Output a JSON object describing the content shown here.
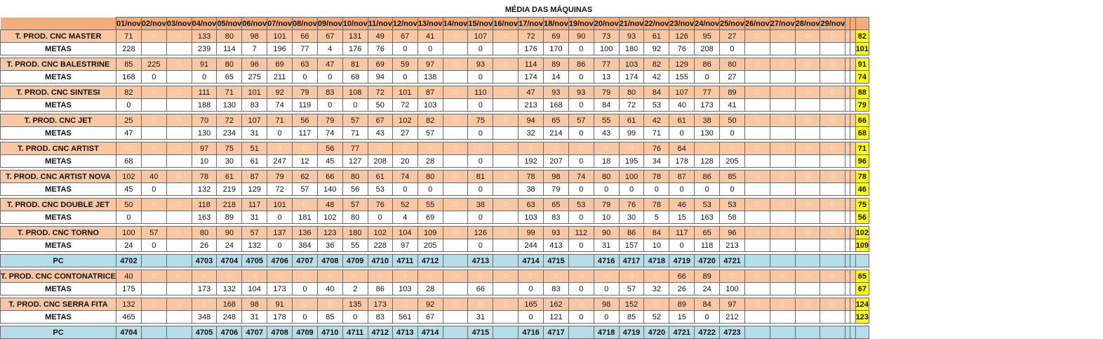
{
  "title": "MÉDIA DAS MÁQUINAS",
  "dates": [
    "01/nov",
    "02/nov",
    "03/nov",
    "04/nov",
    "05/nov",
    "06/nov",
    "07/nov",
    "08/nov",
    "09/nov",
    "10/nov",
    "11/nov",
    "12/nov",
    "13/nov",
    "14/nov",
    "15/nov",
    "16/nov",
    "17/nov",
    "18/nov",
    "19/nov",
    "20/nov",
    "21/nov",
    "22/nov",
    "23/nov",
    "24/nov",
    "25/nov",
    "26/nov",
    "27/nov",
    "28/nov",
    "29/nov",
    "",
    ""
  ],
  "rows": [
    {
      "type": "prod",
      "label": "T. PROD. CNC MASTER",
      "values": [
        "71",
        "0",
        "0",
        "133",
        "80",
        "98",
        "101",
        "66",
        "67",
        "131",
        "49",
        "67",
        "41",
        "0",
        "107",
        "0",
        "72",
        "69",
        "90",
        "73",
        "93",
        "61",
        "126",
        "95",
        "27",
        "0",
        "0",
        "0",
        "0",
        "0",
        "0"
      ],
      "avg": "82"
    },
    {
      "type": "meta",
      "label": "METAS",
      "values": [
        "228",
        "",
        "",
        "239",
        "114",
        "7",
        "196",
        "77",
        "4",
        "176",
        "76",
        "0",
        "0",
        "",
        "0",
        "",
        "176",
        "170",
        "0",
        "100",
        "180",
        "92",
        "76",
        "208",
        "0",
        "",
        "",
        "",
        "",
        "",
        ""
      ],
      "avg": "101"
    },
    {
      "type": "sep"
    },
    {
      "type": "prod",
      "label": "T. PROD. CNC BALESTRINE",
      "values": [
        "85",
        "225",
        "0",
        "91",
        "80",
        "96",
        "69",
        "63",
        "47",
        "81",
        "69",
        "59",
        "97",
        "0",
        "93",
        "0",
        "114",
        "89",
        "86",
        "77",
        "103",
        "82",
        "129",
        "86",
        "80",
        "0",
        "0",
        "0",
        "0",
        "0",
        "0"
      ],
      "avg": "91"
    },
    {
      "type": "meta",
      "label": "METAS",
      "values": [
        "168",
        "0",
        "",
        "0",
        "65",
        "275",
        "211",
        "0",
        "0",
        "68",
        "94",
        "0",
        "138",
        "",
        "0",
        "",
        "174",
        "14",
        "0",
        "13",
        "174",
        "42",
        "155",
        "0",
        "27",
        "",
        "",
        "",
        "",
        "",
        ""
      ],
      "avg": "74"
    },
    {
      "type": "sep"
    },
    {
      "type": "prod",
      "label": "T. PROD. CNC SINTESI",
      "values": [
        "82",
        "0",
        "0",
        "111",
        "71",
        "101",
        "92",
        "79",
        "83",
        "108",
        "72",
        "101",
        "87",
        "0",
        "110",
        "0",
        "47",
        "93",
        "93",
        "79",
        "80",
        "84",
        "107",
        "77",
        "89",
        "0",
        "0",
        "0",
        "0",
        "0",
        "0"
      ],
      "avg": "88"
    },
    {
      "type": "meta",
      "label": "METAS",
      "values": [
        "0",
        "",
        "",
        "188",
        "130",
        "83",
        "74",
        "119",
        "0",
        "0",
        "50",
        "72",
        "103",
        "",
        "0",
        "",
        "213",
        "168",
        "0",
        "84",
        "72",
        "53",
        "40",
        "173",
        "41",
        "",
        "",
        "",
        "",
        "",
        ""
      ],
      "avg": "79"
    },
    {
      "type": "sep"
    },
    {
      "type": "prod",
      "label": "T. PROD. CNC JET",
      "values": [
        "25",
        "0",
        "0",
        "70",
        "72",
        "107",
        "71",
        "56",
        "79",
        "57",
        "67",
        "102",
        "82",
        "0",
        "75",
        "0",
        "94",
        "65",
        "57",
        "55",
        "61",
        "42",
        "61",
        "38",
        "50",
        "0",
        "0",
        "0",
        "0",
        "0",
        "0"
      ],
      "avg": "66"
    },
    {
      "type": "meta",
      "label": "METAS",
      "values": [
        "47",
        "",
        "",
        "130",
        "234",
        "31",
        "0",
        "117",
        "74",
        "71",
        "43",
        "27",
        "57",
        "",
        "0",
        "",
        "32",
        "214",
        "0",
        "43",
        "99",
        "71",
        "0",
        "130",
        "0",
        "",
        "",
        "",
        "",
        "",
        ""
      ],
      "avg": "68"
    },
    {
      "type": "sep"
    },
    {
      "type": "prod",
      "label": "T. PROD. CNC ARTIST",
      "values": [
        "0",
        "0",
        "0",
        "97",
        "75",
        "51",
        "0",
        "0",
        "56",
        "77",
        "0",
        "0",
        "0",
        "0",
        "0",
        "0",
        "0",
        "0",
        "0",
        "0",
        "0",
        "76",
        "64",
        "0",
        "0",
        "0",
        "0",
        "0",
        "0",
        "0",
        "0"
      ],
      "avg": "71"
    },
    {
      "type": "meta",
      "label": "METAS",
      "values": [
        "68",
        "",
        "",
        "10",
        "30",
        "61",
        "247",
        "12",
        "45",
        "127",
        "208",
        "20",
        "28",
        "",
        "0",
        "",
        "192",
        "207",
        "0",
        "18",
        "195",
        "34",
        "178",
        "128",
        "205",
        "",
        "",
        "",
        "",
        "",
        ""
      ],
      "avg": "96"
    },
    {
      "type": "sep"
    },
    {
      "type": "prod",
      "label": "T. PROD. CNC ARTIST NOVA",
      "values": [
        "102",
        "40",
        "0",
        "78",
        "61",
        "87",
        "79",
        "62",
        "66",
        "80",
        "61",
        "74",
        "80",
        "0",
        "81",
        "0",
        "78",
        "98",
        "74",
        "80",
        "100",
        "78",
        "87",
        "86",
        "85",
        "0",
        "0",
        "0",
        "0",
        "0",
        "0"
      ],
      "avg": "78"
    },
    {
      "type": "meta",
      "label": "METAS",
      "values": [
        "45",
        "0",
        "",
        "132",
        "219",
        "129",
        "72",
        "57",
        "140",
        "56",
        "53",
        "0",
        "0",
        "",
        "0",
        "",
        "38",
        "79",
        "0",
        "0",
        "0",
        "0",
        "0",
        "0",
        "0",
        "",
        "",
        "",
        "",
        "",
        ""
      ],
      "avg": "46"
    },
    {
      "type": "sep"
    },
    {
      "type": "prod",
      "label": "T. PROD. CNC DOUBLE JET",
      "values": [
        "50",
        "0",
        "0",
        "118",
        "218",
        "117",
        "101",
        "0",
        "48",
        "57",
        "76",
        "52",
        "55",
        "0",
        "38",
        "0",
        "63",
        "65",
        "53",
        "79",
        "76",
        "78",
        "46",
        "53",
        "53",
        "0",
        "0",
        "0",
        "0",
        "0",
        "0"
      ],
      "avg": "75"
    },
    {
      "type": "meta",
      "label": "METAS",
      "values": [
        "0",
        "",
        "",
        "163",
        "89",
        "31",
        "0",
        "181",
        "102",
        "80",
        "0",
        "4",
        "69",
        "",
        "0",
        "",
        "103",
        "83",
        "0",
        "10",
        "30",
        "5",
        "15",
        "163",
        "58",
        "",
        "",
        "",
        "",
        "",
        ""
      ],
      "avg": "56"
    },
    {
      "type": "sep"
    },
    {
      "type": "prod",
      "label": "T. PROD. CNC TORNO",
      "values": [
        "100",
        "57",
        "0",
        "80",
        "90",
        "57",
        "137",
        "136",
        "123",
        "180",
        "102",
        "104",
        "109",
        "0",
        "126",
        "0",
        "99",
        "93",
        "112",
        "90",
        "86",
        "84",
        "117",
        "65",
        "96",
        "0",
        "0",
        "0",
        "0",
        "0",
        "0"
      ],
      "avg": "102"
    },
    {
      "type": "meta",
      "label": "METAS",
      "values": [
        "24",
        "0",
        "",
        "26",
        "24",
        "132",
        "0",
        "384",
        "36",
        "55",
        "228",
        "97",
        "205",
        "",
        "0",
        "",
        "244",
        "413",
        "0",
        "31",
        "157",
        "10",
        "0",
        "118",
        "213",
        "",
        "",
        "",
        "",
        "",
        ""
      ],
      "avg": "109"
    },
    {
      "type": "sep"
    },
    {
      "type": "pc",
      "label": "PC",
      "values": [
        "4702",
        "",
        "",
        "4703",
        "4704",
        "4705",
        "4706",
        "4707",
        "4708",
        "4709",
        "4710",
        "4711",
        "4712",
        "",
        "4713",
        "",
        "4714",
        "4715",
        "",
        "4716",
        "4717",
        "4718",
        "4719",
        "4720",
        "4721",
        "",
        "",
        "",
        "",
        "",
        ""
      ],
      "avg": ""
    },
    {
      "type": "sep"
    },
    {
      "type": "prod",
      "label": "T. PROD. CNC CONTONATRICE",
      "values": [
        "40",
        "0",
        "0",
        "0",
        "0",
        "0",
        "0",
        "0",
        "0",
        "0",
        "0",
        "0",
        "0",
        "0",
        "0",
        "0",
        "0",
        "0",
        "0",
        "0",
        "0",
        "0",
        "66",
        "89",
        "0",
        "0",
        "0",
        "0",
        "0",
        "0",
        "0"
      ],
      "avg": "65"
    },
    {
      "type": "meta",
      "label": "METAS",
      "values": [
        "175",
        "",
        "",
        "173",
        "132",
        "104",
        "173",
        "0",
        "40",
        "2",
        "86",
        "103",
        "28",
        "",
        "66",
        "",
        "0",
        "83",
        "0",
        "0",
        "57",
        "32",
        "26",
        "24",
        "100",
        "",
        "",
        "",
        "",
        "",
        ""
      ],
      "avg": "67"
    },
    {
      "type": "sep"
    },
    {
      "type": "prod",
      "label": "T. PROD. CNC SERRA FITA",
      "values": [
        "132",
        "0",
        "0",
        "0",
        "168",
        "98",
        "91",
        "0",
        "0",
        "135",
        "173",
        "0",
        "92",
        "0",
        "0",
        "0",
        "165",
        "162",
        "0",
        "98",
        "152",
        "0",
        "89",
        "84",
        "97",
        "0",
        "0",
        "0",
        "0",
        "0",
        "0"
      ],
      "avg": "124"
    },
    {
      "type": "meta",
      "label": "METAS",
      "values": [
        "465",
        "",
        "",
        "348",
        "248",
        "31",
        "178",
        "0",
        "85",
        "0",
        "83",
        "561",
        "67",
        "",
        "31",
        "",
        "0",
        "121",
        "0",
        "0",
        "85",
        "52",
        "15",
        "0",
        "212",
        "",
        "",
        "",
        "",
        "",
        ""
      ],
      "avg": "123"
    },
    {
      "type": "sep"
    },
    {
      "type": "pc",
      "label": "PC",
      "values": [
        "4704",
        "",
        "",
        "4705",
        "4706",
        "4707",
        "4708",
        "4709",
        "4710",
        "4711",
        "4712",
        "4713",
        "4714",
        "",
        "4715",
        "",
        "4716",
        "4717",
        "",
        "4718",
        "4719",
        "4720",
        "4721",
        "4722",
        "4723",
        "",
        "",
        "",
        "",
        "",
        ""
      ],
      "avg": ""
    }
  ]
}
